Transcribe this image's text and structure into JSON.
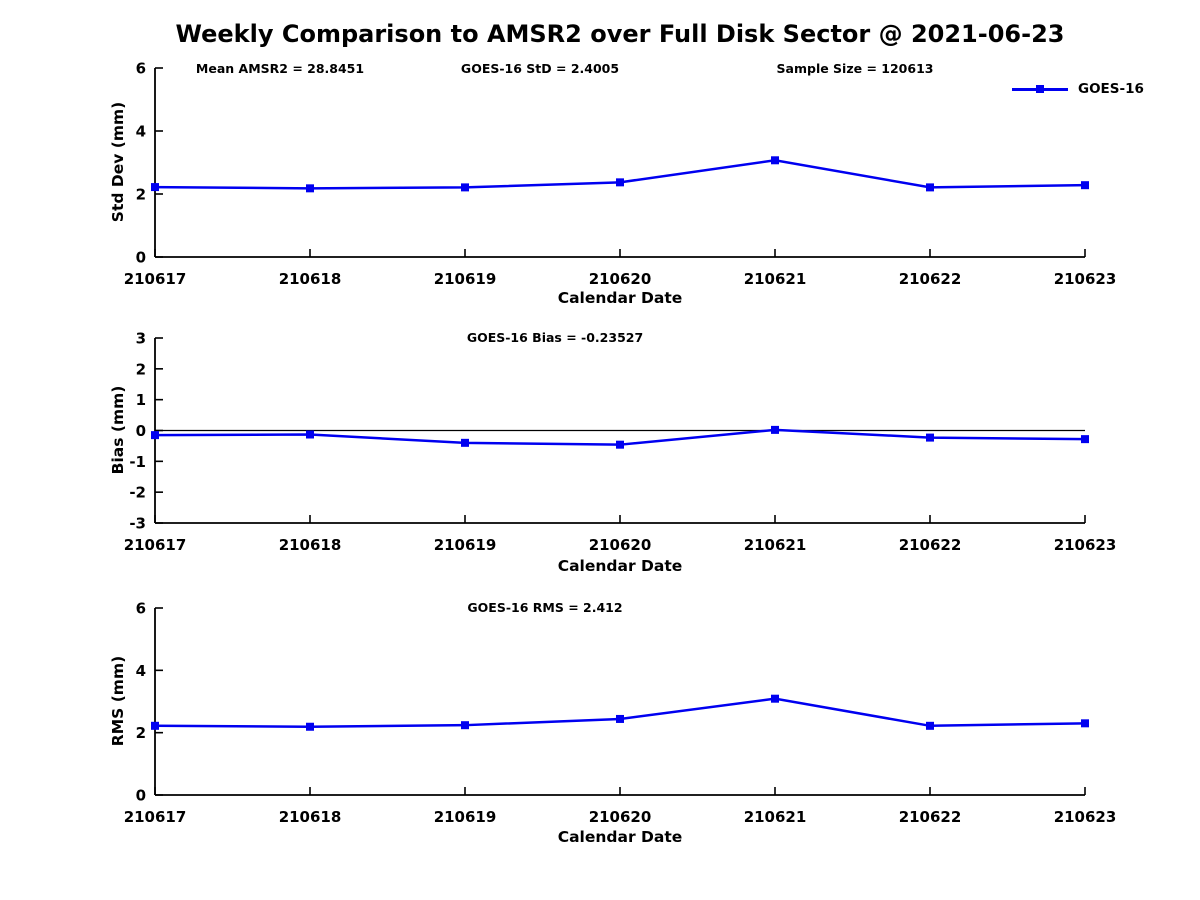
{
  "title": "Weekly Comparison to AMSR2 over Full Disk Sector @ 2021-06-23",
  "legend": {
    "label": "GOES-16",
    "color": "#0000f0"
  },
  "colors": {
    "series_blue": "#0000f0",
    "axis_black": "#000000"
  },
  "chart_data": [
    {
      "type": "line",
      "ylabel": "Std Dev (mm)",
      "xlabel": "Calendar Date",
      "categories": [
        "210617",
        "210618",
        "210619",
        "210620",
        "210621",
        "210622",
        "210623"
      ],
      "series": [
        {
          "name": "GOES-16",
          "values": [
            2.22,
            2.18,
            2.21,
            2.37,
            3.07,
            2.21,
            2.28
          ]
        }
      ],
      "ylim": [
        0,
        6
      ],
      "yticks": [
        0,
        2,
        4,
        6
      ],
      "zero_line": false,
      "grid": false,
      "marker": "square",
      "line_color": "#0000f0",
      "legend_position": "top-right",
      "annotations": [
        "Mean AMSR2 = 28.8451",
        "GOES-16 StD = 2.4005",
        "Sample Size = 120613"
      ]
    },
    {
      "type": "line",
      "ylabel": "Bias (mm)",
      "xlabel": "Calendar Date",
      "categories": [
        "210617",
        "210618",
        "210619",
        "210620",
        "210621",
        "210622",
        "210623"
      ],
      "series": [
        {
          "name": "GOES-16",
          "values": [
            -0.15,
            -0.13,
            -0.4,
            -0.46,
            0.02,
            -0.23,
            -0.28
          ]
        }
      ],
      "ylim": [
        -3,
        3
      ],
      "yticks": [
        3,
        2,
        1,
        0,
        -1,
        -2,
        -3
      ],
      "zero_line": true,
      "grid": false,
      "marker": "square",
      "line_color": "#0000f0",
      "annotations": [
        "GOES-16 Bias  = -0.23527"
      ]
    },
    {
      "type": "line",
      "ylabel": "RMS (mm)",
      "xlabel": "Calendar Date",
      "categories": [
        "210617",
        "210618",
        "210619",
        "210620",
        "210621",
        "210622",
        "210623"
      ],
      "series": [
        {
          "name": "GOES-16",
          "values": [
            2.22,
            2.19,
            2.24,
            2.44,
            3.09,
            2.22,
            2.3
          ]
        }
      ],
      "ylim": [
        0,
        6
      ],
      "yticks": [
        0,
        2,
        4,
        6
      ],
      "zero_line": false,
      "grid": false,
      "marker": "square",
      "line_color": "#0000f0",
      "annotations": [
        "GOES-16 RMS = 2.412"
      ]
    }
  ]
}
